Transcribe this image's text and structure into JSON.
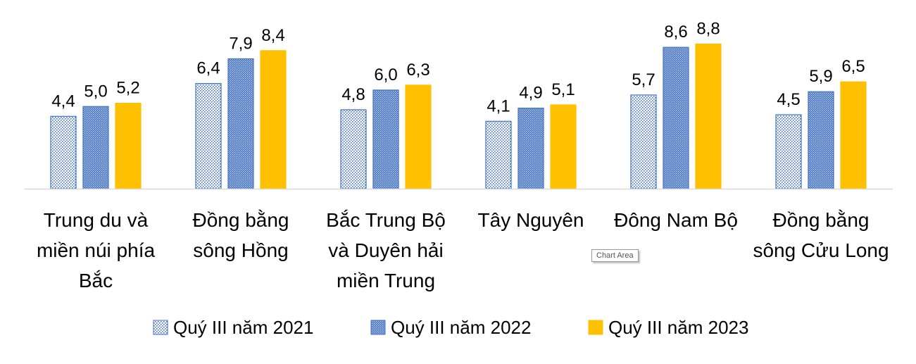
{
  "tooltip": "Chart Area",
  "chart_data": {
    "type": "bar",
    "categories": [
      [
        "Trung du và",
        "miền núi phía",
        "Bắc"
      ],
      [
        "Đồng bằng",
        "sông Hồng"
      ],
      [
        "Bắc Trung Bộ",
        "và Duyên hải",
        "miền Trung"
      ],
      [
        "Tây Nguyên"
      ],
      [
        "Đông Nam Bộ"
      ],
      [
        "Đồng bằng",
        "sông Cửu Long"
      ]
    ],
    "series": [
      {
        "name": "Quý III năm 2021",
        "values": [
          4.4,
          6.4,
          4.8,
          4.1,
          5.7,
          4.5
        ],
        "labels": [
          "4,4",
          "6,4",
          "4,8",
          "4,1",
          "5,7",
          "4,5"
        ],
        "color": "#4472C4",
        "fill": "dotted-light"
      },
      {
        "name": "Quý III năm 2022",
        "values": [
          5.0,
          7.9,
          6.0,
          4.9,
          8.6,
          5.9
        ],
        "labels": [
          "5,0",
          "7,9",
          "6,0",
          "4,9",
          "8,6",
          "5,9"
        ],
        "color": "#4472C4",
        "fill": "dotted-dense"
      },
      {
        "name": "Quý III năm 2023",
        "values": [
          5.2,
          8.4,
          6.3,
          5.1,
          8.8,
          6.5
        ],
        "labels": [
          "5,2",
          "8,4",
          "6,3",
          "5,1",
          "8,8",
          "6,5"
        ],
        "color": "#FFC000",
        "fill": "solid"
      }
    ],
    "ylim": [
      0,
      10
    ],
    "grid": false,
    "legend": "bottom"
  }
}
